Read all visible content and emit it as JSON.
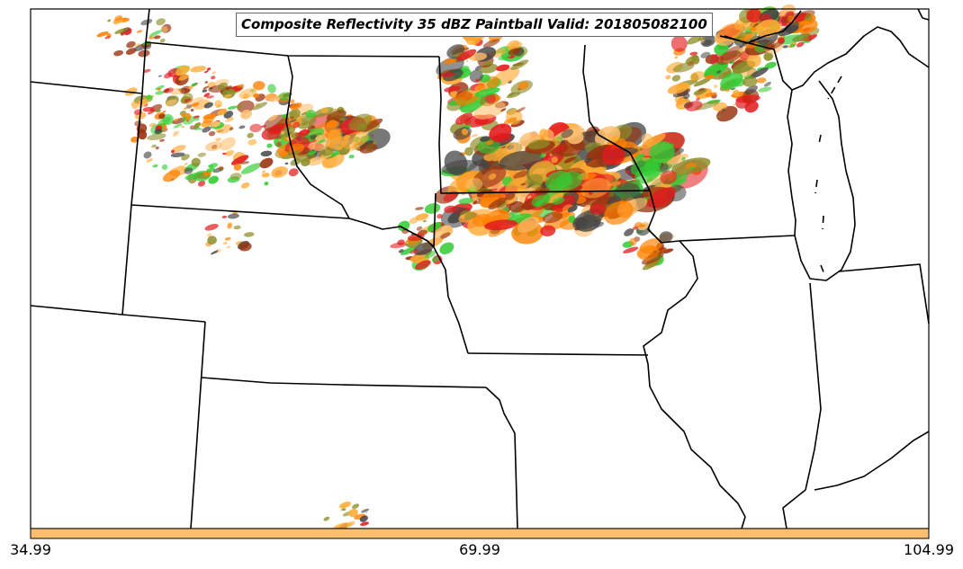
{
  "title": "Composite Reflectivity 35 dBZ Paintball Valid: 201805082100",
  "colorbar": {
    "color": "#fdbf6f",
    "ticks": [
      "34.99",
      "69.99",
      "104.99"
    ]
  },
  "member_colors": [
    "#33cc33",
    "#e31a1c",
    "#ff7f00",
    "#fdbf6f",
    "#8c8c26",
    "#99330f",
    "#444444",
    "#ffaa33"
  ],
  "basemap": {
    "boundaries": "state borders and Great Lakes coastline",
    "line_color": "#000000"
  }
}
